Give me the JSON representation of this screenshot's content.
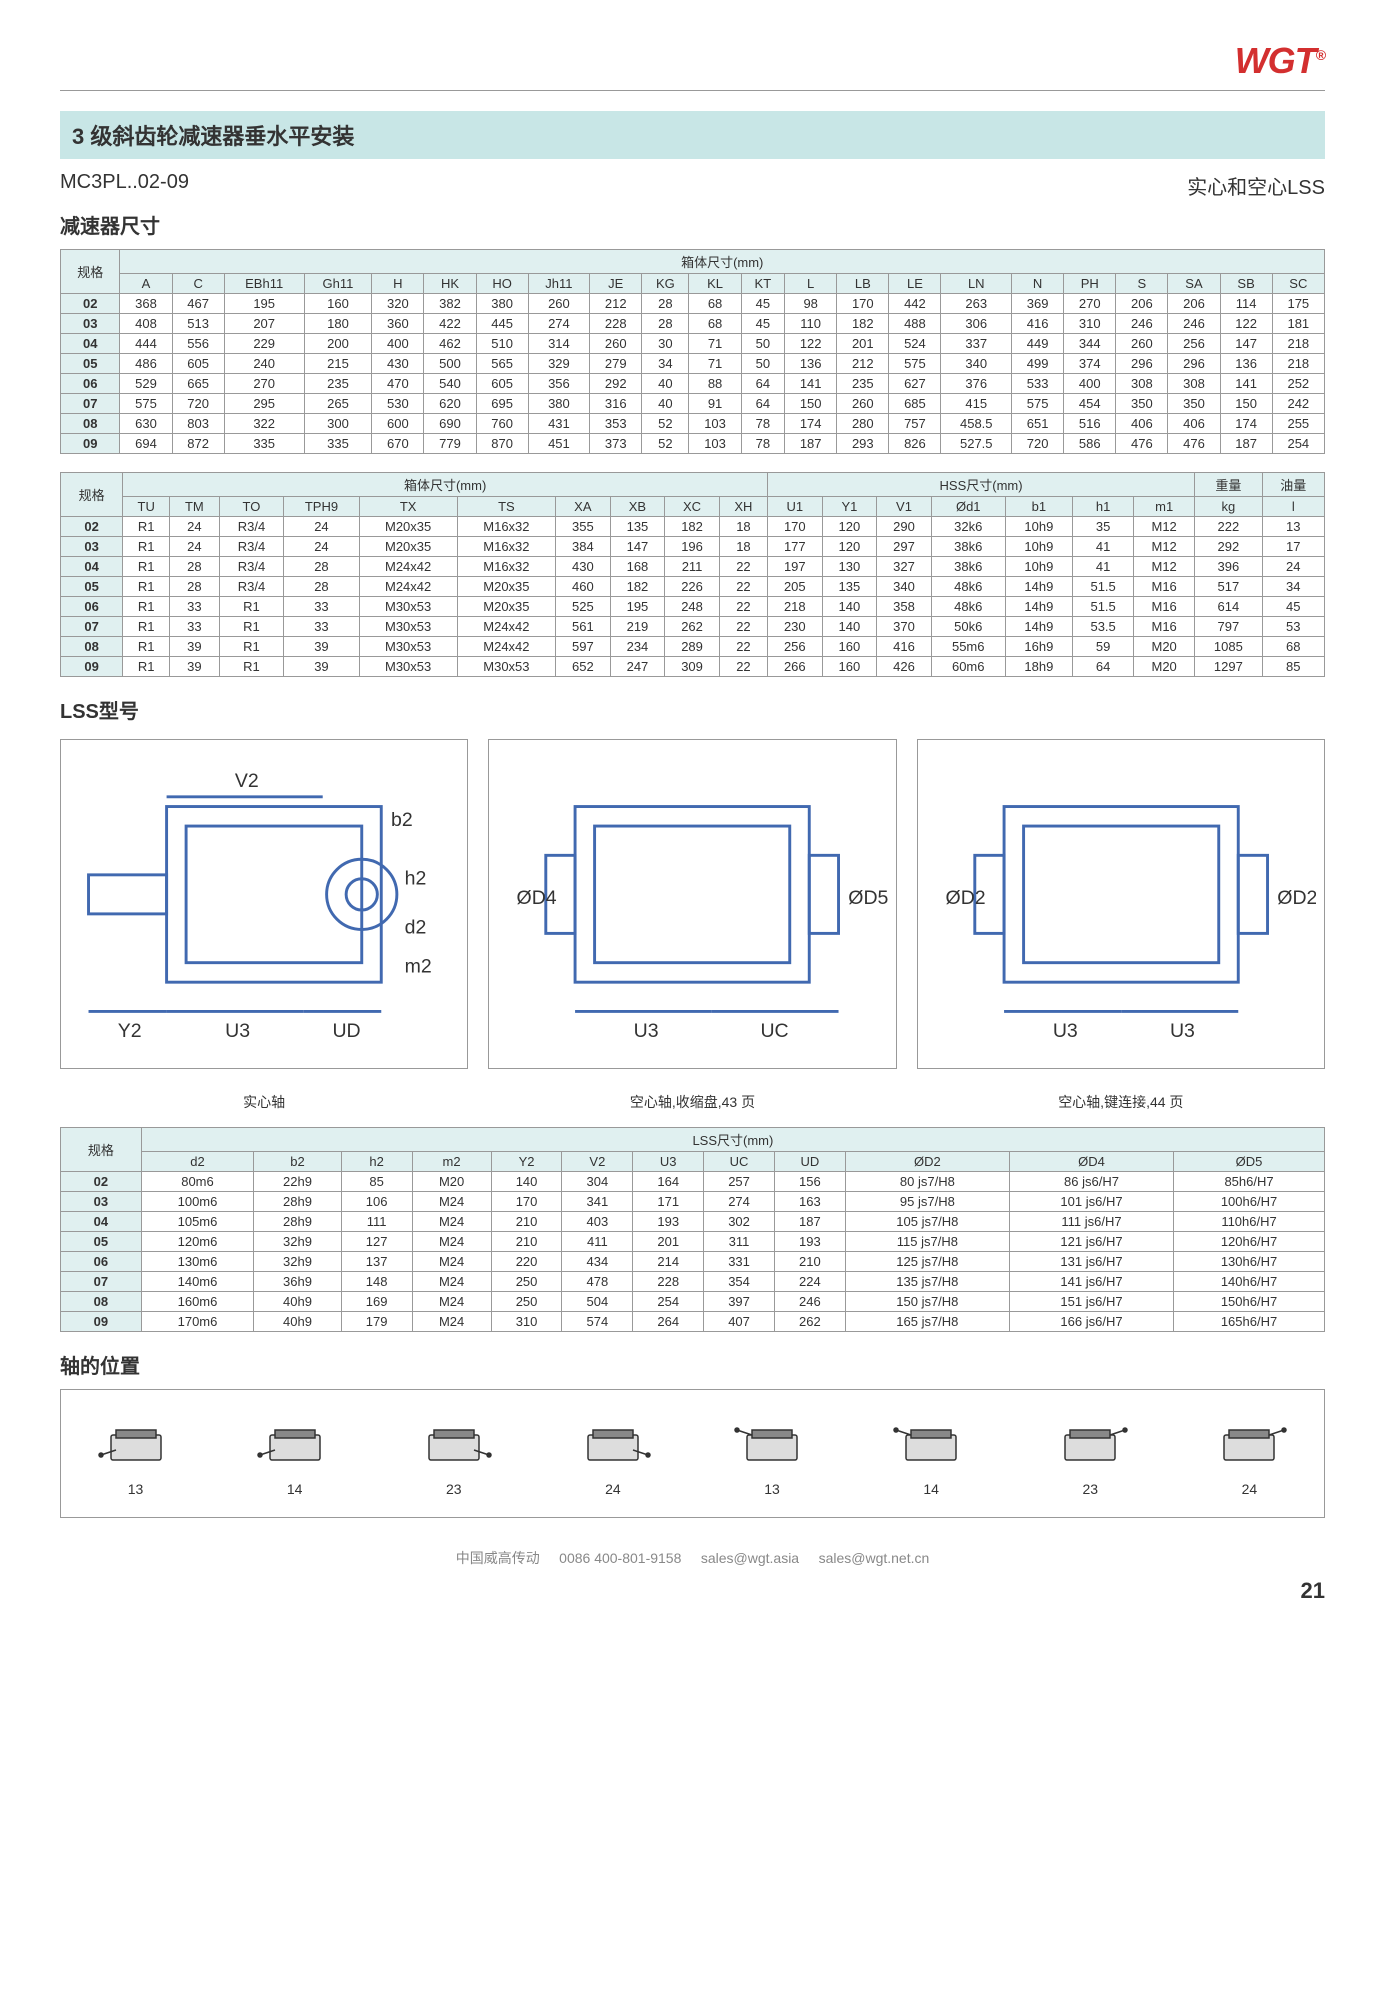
{
  "brand": "WGT",
  "section_heading": "3 级斜齿轮减速器垂水平安装",
  "model_code": "MC3PL..02-09",
  "lss_type_label": "实心和空心LSS",
  "dim_heading": "减速器尺寸",
  "table1": {
    "group_header": "箱体尺寸(mm)",
    "spec_label": "规格",
    "cols": [
      "A",
      "C",
      "EBh11",
      "Gh11",
      "H",
      "HK",
      "HO",
      "Jh11",
      "JE",
      "KG",
      "KL",
      "KT",
      "L",
      "LB",
      "LE",
      "LN",
      "N",
      "PH",
      "S",
      "SA",
      "SB",
      "SC"
    ],
    "rows": [
      [
        "02",
        "368",
        "467",
        "195",
        "160",
        "320",
        "382",
        "380",
        "260",
        "212",
        "28",
        "68",
        "45",
        "98",
        "170",
        "442",
        "263",
        "369",
        "270",
        "206",
        "206",
        "114",
        "175"
      ],
      [
        "03",
        "408",
        "513",
        "207",
        "180",
        "360",
        "422",
        "445",
        "274",
        "228",
        "28",
        "68",
        "45",
        "110",
        "182",
        "488",
        "306",
        "416",
        "310",
        "246",
        "246",
        "122",
        "181"
      ],
      [
        "04",
        "444",
        "556",
        "229",
        "200",
        "400",
        "462",
        "510",
        "314",
        "260",
        "30",
        "71",
        "50",
        "122",
        "201",
        "524",
        "337",
        "449",
        "344",
        "260",
        "256",
        "147",
        "218"
      ],
      [
        "05",
        "486",
        "605",
        "240",
        "215",
        "430",
        "500",
        "565",
        "329",
        "279",
        "34",
        "71",
        "50",
        "136",
        "212",
        "575",
        "340",
        "499",
        "374",
        "296",
        "296",
        "136",
        "218"
      ],
      [
        "06",
        "529",
        "665",
        "270",
        "235",
        "470",
        "540",
        "605",
        "356",
        "292",
        "40",
        "88",
        "64",
        "141",
        "235",
        "627",
        "376",
        "533",
        "400",
        "308",
        "308",
        "141",
        "252"
      ],
      [
        "07",
        "575",
        "720",
        "295",
        "265",
        "530",
        "620",
        "695",
        "380",
        "316",
        "40",
        "91",
        "64",
        "150",
        "260",
        "685",
        "415",
        "575",
        "454",
        "350",
        "350",
        "150",
        "242"
      ],
      [
        "08",
        "630",
        "803",
        "322",
        "300",
        "600",
        "690",
        "760",
        "431",
        "353",
        "52",
        "103",
        "78",
        "174",
        "280",
        "757",
        "458.5",
        "651",
        "516",
        "406",
        "406",
        "174",
        "255"
      ],
      [
        "09",
        "694",
        "872",
        "335",
        "335",
        "670",
        "779",
        "870",
        "451",
        "373",
        "52",
        "103",
        "78",
        "187",
        "293",
        "826",
        "527.5",
        "720",
        "586",
        "476",
        "476",
        "187",
        "254"
      ]
    ]
  },
  "table2": {
    "group1": "箱体尺寸(mm)",
    "group2": "HSS尺寸(mm)",
    "group3": "重量",
    "group4": "油量",
    "spec_label": "规格",
    "cols": [
      "TU",
      "TM",
      "TO",
      "TPH9",
      "TX",
      "TS",
      "XA",
      "XB",
      "XC",
      "XH",
      "U1",
      "Y1",
      "V1",
      "Ød1",
      "b1",
      "h1",
      "m1",
      "kg",
      "l"
    ],
    "rows": [
      [
        "02",
        "R1",
        "24",
        "R3/4",
        "24",
        "M20x35",
        "M16x32",
        "355",
        "135",
        "182",
        "18",
        "170",
        "120",
        "290",
        "32k6",
        "10h9",
        "35",
        "M12",
        "222",
        "13"
      ],
      [
        "03",
        "R1",
        "24",
        "R3/4",
        "24",
        "M20x35",
        "M16x32",
        "384",
        "147",
        "196",
        "18",
        "177",
        "120",
        "297",
        "38k6",
        "10h9",
        "41",
        "M12",
        "292",
        "17"
      ],
      [
        "04",
        "R1",
        "28",
        "R3/4",
        "28",
        "M24x42",
        "M16x32",
        "430",
        "168",
        "211",
        "22",
        "197",
        "130",
        "327",
        "38k6",
        "10h9",
        "41",
        "M12",
        "396",
        "24"
      ],
      [
        "05",
        "R1",
        "28",
        "R3/4",
        "28",
        "M24x42",
        "M20x35",
        "460",
        "182",
        "226",
        "22",
        "205",
        "135",
        "340",
        "48k6",
        "14h9",
        "51.5",
        "M16",
        "517",
        "34"
      ],
      [
        "06",
        "R1",
        "33",
        "R1",
        "33",
        "M30x53",
        "M20x35",
        "525",
        "195",
        "248",
        "22",
        "218",
        "140",
        "358",
        "48k6",
        "14h9",
        "51.5",
        "M16",
        "614",
        "45"
      ],
      [
        "07",
        "R1",
        "33",
        "R1",
        "33",
        "M30x53",
        "M24x42",
        "561",
        "219",
        "262",
        "22",
        "230",
        "140",
        "370",
        "50k6",
        "14h9",
        "53.5",
        "M16",
        "797",
        "53"
      ],
      [
        "08",
        "R1",
        "39",
        "R1",
        "39",
        "M30x53",
        "M24x42",
        "597",
        "234",
        "289",
        "22",
        "256",
        "160",
        "416",
        "55m6",
        "16h9",
        "59",
        "M20",
        "1085",
        "68"
      ],
      [
        "09",
        "R1",
        "39",
        "R1",
        "39",
        "M30x53",
        "M30x53",
        "652",
        "247",
        "309",
        "22",
        "266",
        "160",
        "426",
        "60m6",
        "18h9",
        "64",
        "M20",
        "1297",
        "85"
      ]
    ]
  },
  "lss_heading": "LSS型号",
  "diagram_labels": [
    "实心轴",
    "空心轴,收缩盘,43 页",
    "空心轴,键连接,44 页"
  ],
  "diagram_annotations": {
    "d1": [
      "V2",
      "b2",
      "h2",
      "d2",
      "m2",
      "Y2",
      "U3",
      "UD"
    ],
    "d2": [
      "ØD4",
      "ØD5",
      "U3",
      "UC"
    ],
    "d3": [
      "ØD2",
      "ØD2",
      "U3",
      "U3"
    ]
  },
  "table3": {
    "group_header": "LSS尺寸(mm)",
    "spec_label": "规格",
    "cols": [
      "d2",
      "b2",
      "h2",
      "m2",
      "Y2",
      "V2",
      "U3",
      "UC",
      "UD",
      "ØD2",
      "ØD4",
      "ØD5"
    ],
    "rows": [
      [
        "02",
        "80m6",
        "22h9",
        "85",
        "M20",
        "140",
        "304",
        "164",
        "257",
        "156",
        "80 js7/H8",
        "86 js6/H7",
        "85h6/H7"
      ],
      [
        "03",
        "100m6",
        "28h9",
        "106",
        "M24",
        "170",
        "341",
        "171",
        "274",
        "163",
        "95 js7/H8",
        "101 js6/H7",
        "100h6/H7"
      ],
      [
        "04",
        "105m6",
        "28h9",
        "111",
        "M24",
        "210",
        "403",
        "193",
        "302",
        "187",
        "105 js7/H8",
        "111 js6/H7",
        "110h6/H7"
      ],
      [
        "05",
        "120m6",
        "32h9",
        "127",
        "M24",
        "210",
        "411",
        "201",
        "311",
        "193",
        "115 js7/H8",
        "121 js6/H7",
        "120h6/H7"
      ],
      [
        "06",
        "130m6",
        "32h9",
        "137",
        "M24",
        "220",
        "434",
        "214",
        "331",
        "210",
        "125 js7/H8",
        "131 js6/H7",
        "130h6/H7"
      ],
      [
        "07",
        "140m6",
        "36h9",
        "148",
        "M24",
        "250",
        "478",
        "228",
        "354",
        "224",
        "135 js7/H8",
        "141 js6/H7",
        "140h6/H7"
      ],
      [
        "08",
        "160m6",
        "40h9",
        "169",
        "M24",
        "250",
        "504",
        "254",
        "397",
        "246",
        "150 js7/H8",
        "151 js6/H7",
        "150h6/H7"
      ],
      [
        "09",
        "170m6",
        "40h9",
        "179",
        "M24",
        "310",
        "574",
        "264",
        "407",
        "262",
        "165 js7/H8",
        "166 js6/H7",
        "165h6/H7"
      ]
    ]
  },
  "shaft_heading": "轴的位置",
  "shaft_positions": [
    "13",
    "14",
    "23",
    "24",
    "13",
    "14",
    "23",
    "24"
  ],
  "footer": {
    "company": "中国威高传动",
    "phone": "0086 400-801-9158",
    "email1": "sales@wgt.asia",
    "email2": "sales@wgt.net.cn"
  },
  "page_number": "21",
  "colors": {
    "brand": "#d32f2f",
    "header_bg": "#c8e6e6",
    "table_header": "#e0f0f0",
    "border": "#999999",
    "diagram_stroke": "#4169b0"
  }
}
